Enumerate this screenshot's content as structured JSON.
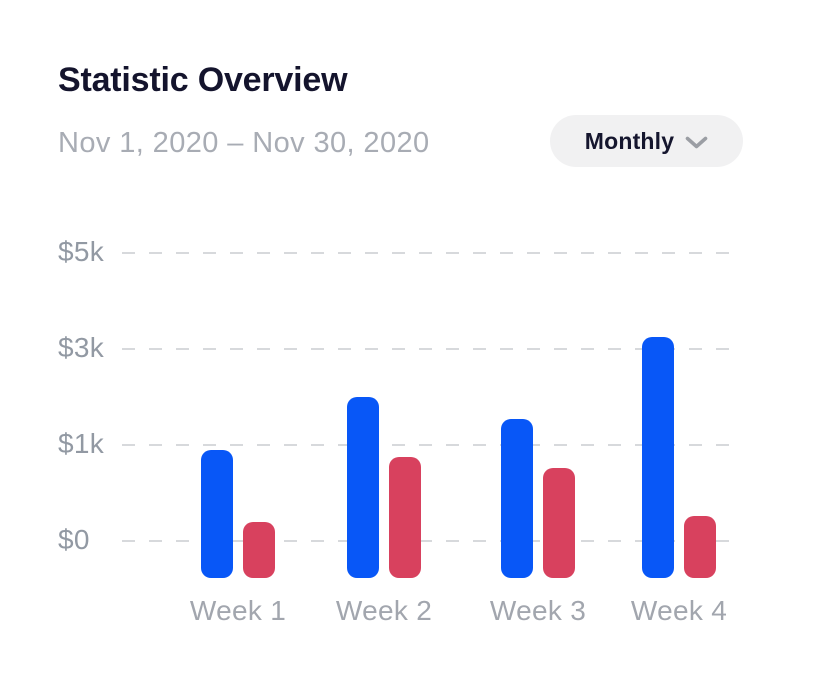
{
  "header": {
    "title": "Statistic Overview",
    "date_range": "Nov 1, 2020 – Nov 30, 2020",
    "period_selector": {
      "label": "Monthly",
      "icon": "chevron-down-icon"
    }
  },
  "chart_data": {
    "type": "bar",
    "title": "Statistic Overview",
    "subtitle": "Nov 1, 2020 – Nov 30, 2020",
    "categories": [
      "Week 1",
      "Week 2",
      "Week 3",
      "Week 4"
    ],
    "series": [
      {
        "name": "blue",
        "color": "#0857f7",
        "values": [
          950,
          2000,
          1550,
          3250
        ]
      },
      {
        "name": "red",
        "color": "#d8415e",
        "values": [
          200,
          880,
          760,
          260
        ]
      }
    ],
    "yticks": [
      {
        "label": "$5k",
        "value": 5000
      },
      {
        "label": "$3k",
        "value": 3000
      },
      {
        "label": "$1k",
        "value": 1000
      },
      {
        "label": "$0",
        "value": 0
      }
    ],
    "ylim": [
      0,
      5000
    ],
    "y_axis_scale": "non-linear: ticks 0, 1k, 3k, 5k evenly spaced",
    "grid": "horizontal dashed",
    "legend": "none",
    "currency": "USD"
  },
  "colors": {
    "bar_blue": "#0857f7",
    "bar_red": "#d8415e",
    "title_text": "#14142d",
    "muted_text": "#a2a6ae",
    "gridline": "#d7d9dc",
    "pill_background": "#f1f1f2"
  }
}
